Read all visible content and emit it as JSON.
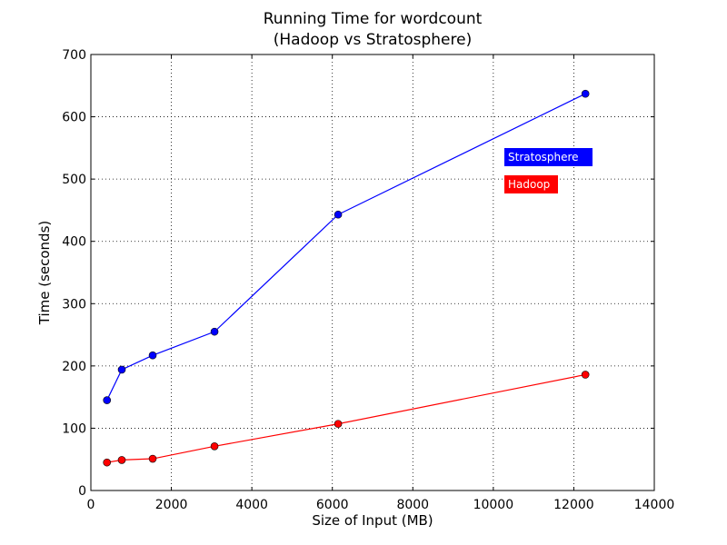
{
  "chart_data": {
    "type": "line",
    "title_line1": "Running Time for wordcount",
    "title_line2": "(Hadoop vs Stratosphere)",
    "xlabel": "Size of Input (MB)",
    "ylabel": "Time (seconds)",
    "xlim": [
      0,
      14000
    ],
    "ylim": [
      0,
      700
    ],
    "xticks": [
      0,
      2000,
      4000,
      6000,
      8000,
      10000,
      12000,
      14000
    ],
    "yticks": [
      0,
      100,
      200,
      300,
      400,
      500,
      600,
      700
    ],
    "grid": true,
    "legend_placement": "right",
    "series": [
      {
        "name": "Stratosphere",
        "color": "#0000ff",
        "x": [
          400,
          768,
          1536,
          3072,
          6144,
          12288
        ],
        "y": [
          145,
          194,
          217,
          255,
          443,
          637
        ]
      },
      {
        "name": "Hadoop",
        "color": "#ff0000",
        "x": [
          400,
          768,
          1536,
          3072,
          6144,
          12288
        ],
        "y": [
          45,
          49,
          51,
          71,
          107,
          186
        ]
      }
    ]
  }
}
